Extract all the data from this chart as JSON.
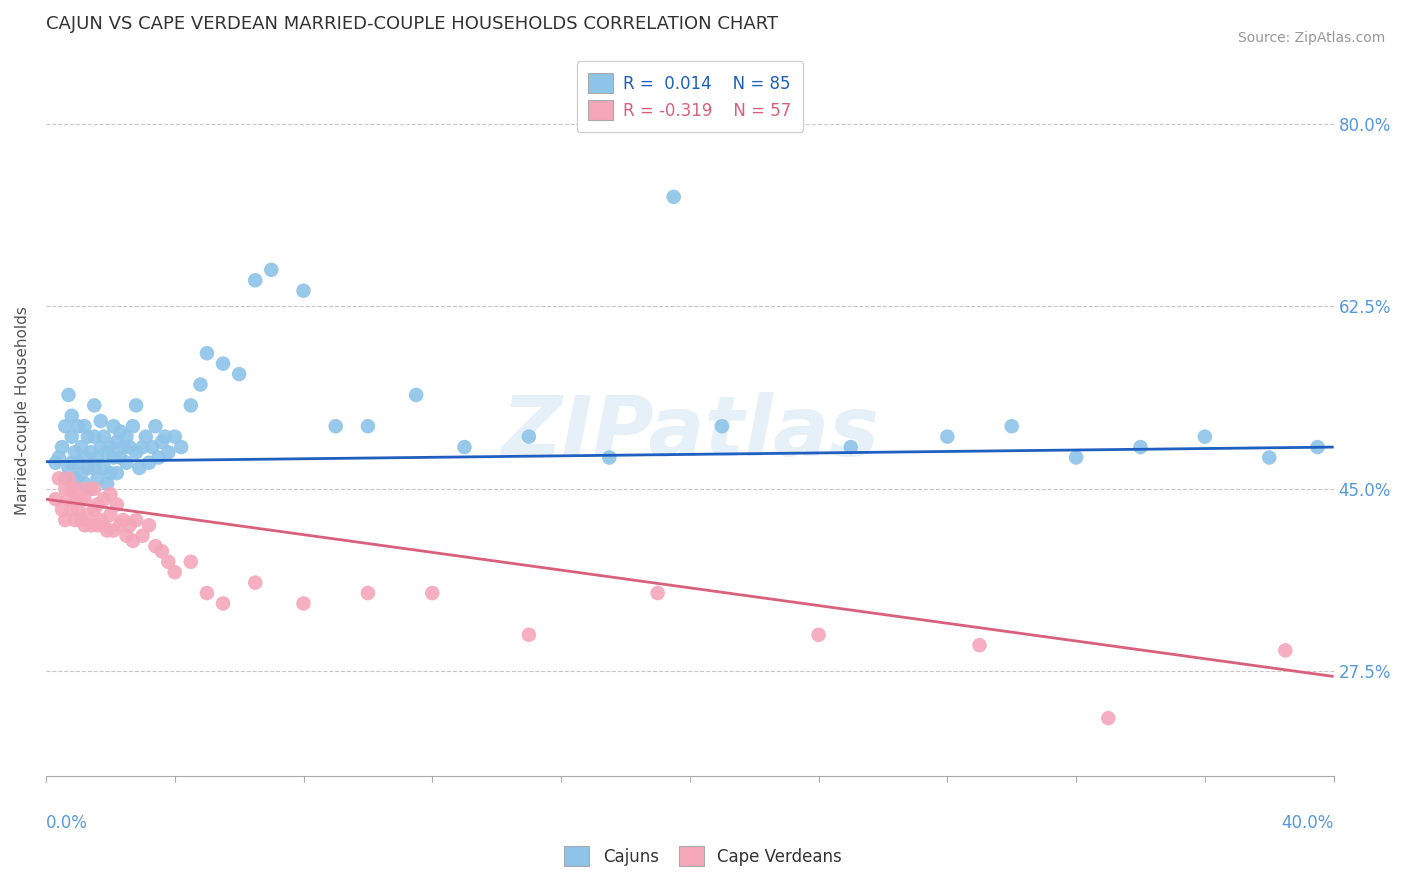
{
  "title": "CAJUN VS CAPE VERDEAN MARRIED-COUPLE HOUSEHOLDS CORRELATION CHART",
  "source": "Source: ZipAtlas.com",
  "ylabel": "Married-couple Households",
  "yticks": [
    "27.5%",
    "45.0%",
    "62.5%",
    "80.0%"
  ],
  "ytick_vals": [
    0.275,
    0.45,
    0.625,
    0.8
  ],
  "xmin": 0.0,
  "xmax": 0.4,
  "ymin": 0.175,
  "ymax": 0.875,
  "cajun_color": "#8EC4E8",
  "cape_color": "#F4A7B9",
  "cajun_line_color": "#1F5FBF",
  "cape_line_color": "#D9607A",
  "watermark_text": "ZIPatlas",
  "cajun_line_x0": 0.0,
  "cajun_line_x1": 0.4,
  "cajun_line_y0": 0.476,
  "cajun_line_y1": 0.49,
  "cape_line_x0": 0.0,
  "cape_line_x1": 0.4,
  "cape_line_y0": 0.44,
  "cape_line_y1": 0.27,
  "cajun_scatter_x": [
    0.003,
    0.004,
    0.005,
    0.006,
    0.006,
    0.007,
    0.007,
    0.008,
    0.008,
    0.008,
    0.009,
    0.009,
    0.01,
    0.01,
    0.011,
    0.011,
    0.012,
    0.012,
    0.012,
    0.013,
    0.013,
    0.014,
    0.014,
    0.015,
    0.015,
    0.015,
    0.016,
    0.016,
    0.017,
    0.017,
    0.018,
    0.018,
    0.019,
    0.019,
    0.02,
    0.02,
    0.021,
    0.021,
    0.022,
    0.022,
    0.023,
    0.023,
    0.024,
    0.025,
    0.025,
    0.026,
    0.027,
    0.028,
    0.028,
    0.029,
    0.03,
    0.031,
    0.032,
    0.033,
    0.034,
    0.035,
    0.036,
    0.037,
    0.038,
    0.04,
    0.042,
    0.045,
    0.048,
    0.05,
    0.055,
    0.06,
    0.065,
    0.07,
    0.08,
    0.09,
    0.1,
    0.115,
    0.13,
    0.15,
    0.175,
    0.21,
    0.25,
    0.28,
    0.3,
    0.32,
    0.34,
    0.36,
    0.38,
    0.395,
    0.195
  ],
  "cajun_scatter_y": [
    0.475,
    0.48,
    0.49,
    0.46,
    0.51,
    0.47,
    0.54,
    0.5,
    0.475,
    0.52,
    0.46,
    0.485,
    0.475,
    0.51,
    0.465,
    0.49,
    0.455,
    0.48,
    0.51,
    0.47,
    0.5,
    0.45,
    0.485,
    0.47,
    0.5,
    0.53,
    0.46,
    0.48,
    0.49,
    0.515,
    0.47,
    0.5,
    0.455,
    0.485,
    0.465,
    0.49,
    0.48,
    0.51,
    0.465,
    0.495,
    0.48,
    0.505,
    0.49,
    0.475,
    0.5,
    0.49,
    0.51,
    0.485,
    0.53,
    0.47,
    0.49,
    0.5,
    0.475,
    0.49,
    0.51,
    0.48,
    0.495,
    0.5,
    0.485,
    0.5,
    0.49,
    0.53,
    0.55,
    0.58,
    0.57,
    0.56,
    0.65,
    0.66,
    0.64,
    0.51,
    0.51,
    0.54,
    0.49,
    0.5,
    0.48,
    0.51,
    0.49,
    0.5,
    0.51,
    0.48,
    0.49,
    0.5,
    0.48,
    0.49,
    0.73
  ],
  "cape_scatter_x": [
    0.003,
    0.004,
    0.005,
    0.006,
    0.006,
    0.007,
    0.007,
    0.008,
    0.008,
    0.009,
    0.009,
    0.01,
    0.01,
    0.011,
    0.011,
    0.012,
    0.012,
    0.013,
    0.013,
    0.014,
    0.015,
    0.015,
    0.016,
    0.016,
    0.017,
    0.018,
    0.018,
    0.019,
    0.02,
    0.02,
    0.021,
    0.022,
    0.023,
    0.024,
    0.025,
    0.026,
    0.027,
    0.028,
    0.03,
    0.032,
    0.034,
    0.036,
    0.038,
    0.04,
    0.045,
    0.05,
    0.055,
    0.065,
    0.08,
    0.1,
    0.12,
    0.15,
    0.19,
    0.24,
    0.29,
    0.33,
    0.385
  ],
  "cape_scatter_y": [
    0.44,
    0.46,
    0.43,
    0.45,
    0.42,
    0.44,
    0.46,
    0.43,
    0.45,
    0.42,
    0.44,
    0.43,
    0.45,
    0.42,
    0.44,
    0.415,
    0.44,
    0.425,
    0.45,
    0.415,
    0.43,
    0.45,
    0.415,
    0.435,
    0.42,
    0.415,
    0.44,
    0.41,
    0.425,
    0.445,
    0.41,
    0.435,
    0.415,
    0.42,
    0.405,
    0.415,
    0.4,
    0.42,
    0.405,
    0.415,
    0.395,
    0.39,
    0.38,
    0.37,
    0.38,
    0.35,
    0.34,
    0.36,
    0.34,
    0.35,
    0.35,
    0.31,
    0.35,
    0.31,
    0.3,
    0.23,
    0.295
  ]
}
